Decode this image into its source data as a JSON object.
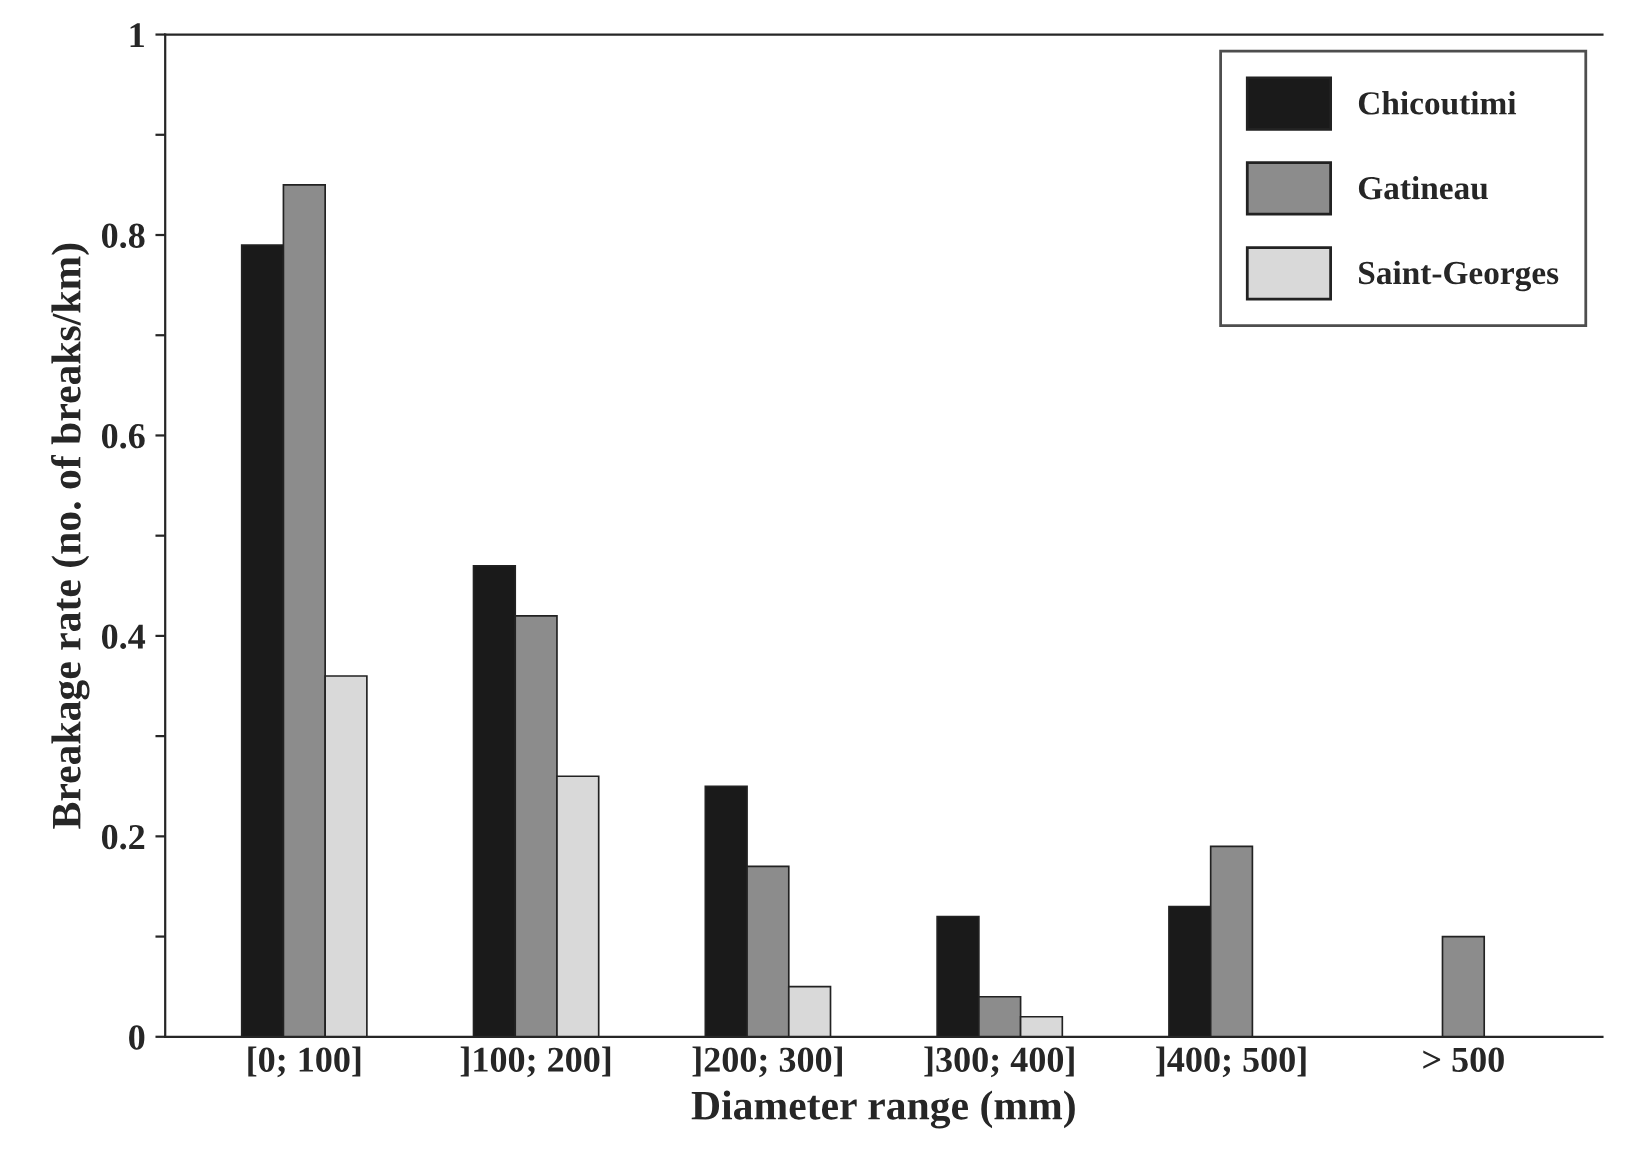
{
  "chart_data": {
    "type": "bar",
    "categories": [
      "[0; 100]",
      "]100; 200]",
      "]200; 300]",
      "]300; 400]",
      "]400; 500]",
      "> 500"
    ],
    "series": [
      {
        "name": "Chicoutimi",
        "color": "#1a1a1a",
        "values": [
          0.79,
          0.47,
          0.25,
          0.12,
          0.13,
          null
        ]
      },
      {
        "name": "Gatineau",
        "color": "#8c8c8c",
        "values": [
          0.85,
          0.42,
          0.17,
          0.04,
          0.19,
          0.1
        ]
      },
      {
        "name": "Saint-Georges",
        "color": "#d9d9d9",
        "values": [
          0.36,
          0.26,
          0.05,
          0.02,
          null,
          null
        ]
      }
    ],
    "xlabel": "Diameter range (mm)",
    "ylabel": "Breakage rate (no. of breaks/km)",
    "ylim": [
      0,
      1
    ],
    "yticks": [
      0,
      {
        "value": 0.1,
        "label": null
      },
      0.2,
      {
        "value": 0.3,
        "label": null
      },
      0.4,
      {
        "value": 0.5,
        "label": null
      },
      0.6,
      {
        "value": 0.7,
        "label": null
      },
      0.8,
      {
        "value": 0.9,
        "label": null
      },
      1
    ],
    "grid": false,
    "legend": "top right"
  }
}
